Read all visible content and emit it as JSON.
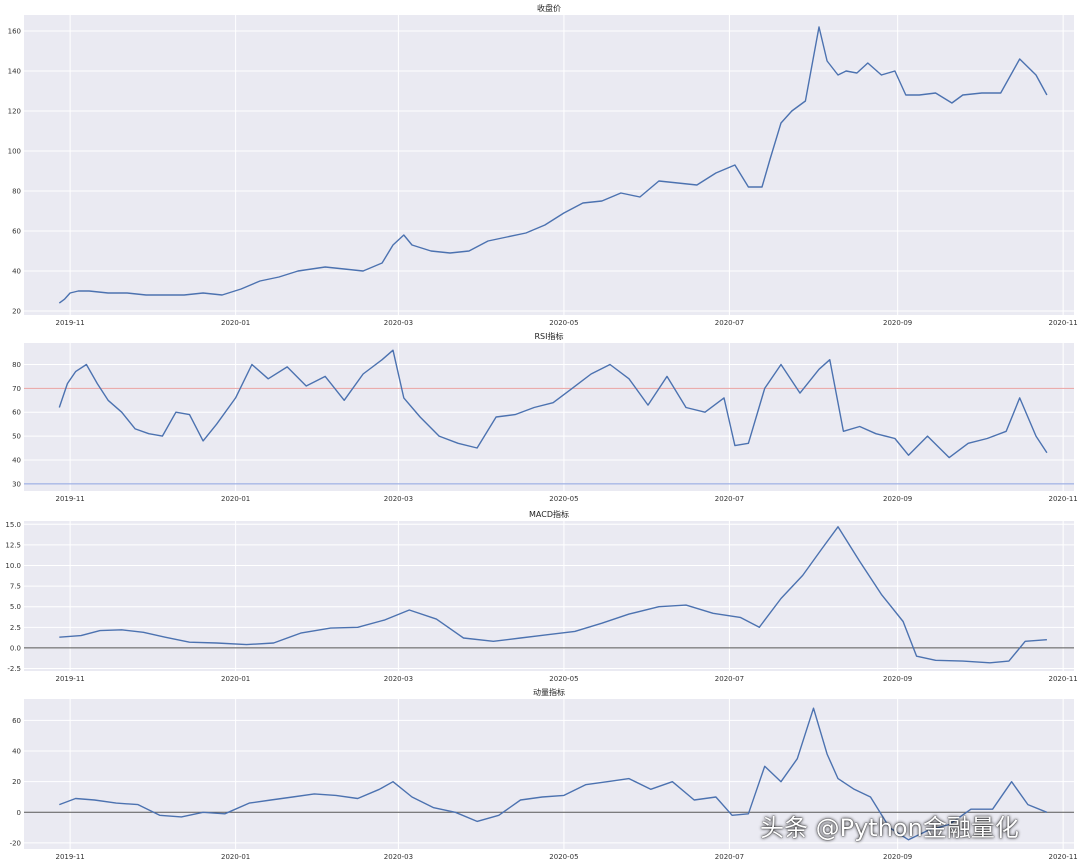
{
  "watermark": "头条 @Python金融量化",
  "colors": {
    "series": "#4c72b0",
    "panel_bg": "#eaeaf2",
    "grid": "#ffffff",
    "overbought_line": "#e8a0a0",
    "oversold_line": "#8aa0e0",
    "zero_line": "#555555"
  },
  "chart_data": [
    {
      "type": "line",
      "title": "收盘价",
      "xlabel": "",
      "ylabel": "",
      "x_range": [
        "2019-10-15",
        "2020-11-05"
      ],
      "ylim": [
        18,
        168
      ],
      "yticks": [
        20,
        40,
        60,
        80,
        100,
        120,
        140,
        160
      ],
      "ytick_labels": [
        "20",
        "40",
        "60",
        "80",
        "100",
        "120",
        "140",
        "160"
      ],
      "xticks": [
        "2019-11-01",
        "2020-01-01",
        "2020-03-01",
        "2020-05-01",
        "2020-07-01",
        "2020-09-01",
        "2020-11-01"
      ],
      "xtick_labels": [
        "2019-11",
        "2020-01",
        "2020-03",
        "2020-05",
        "2020-07",
        "2020-09",
        "2020-11"
      ],
      "ref_lines": [],
      "grid": true,
      "series": [
        {
          "x": [
            "2019-10-28",
            "2019-10-30",
            "2019-11-01",
            "2019-11-04",
            "2019-11-08",
            "2019-11-15",
            "2019-11-22",
            "2019-11-29",
            "2019-12-06",
            "2019-12-13",
            "2019-12-20",
            "2019-12-27",
            "2020-01-03",
            "2020-01-10",
            "2020-01-17",
            "2020-01-24",
            "2020-02-03",
            "2020-02-10",
            "2020-02-17",
            "2020-02-24",
            "2020-02-28",
            "2020-03-03",
            "2020-03-06",
            "2020-03-13",
            "2020-03-20",
            "2020-03-27",
            "2020-04-03",
            "2020-04-10",
            "2020-04-17",
            "2020-04-24",
            "2020-05-01",
            "2020-05-08",
            "2020-05-15",
            "2020-05-22",
            "2020-05-29",
            "2020-06-05",
            "2020-06-12",
            "2020-06-19",
            "2020-06-26",
            "2020-07-03",
            "2020-07-08",
            "2020-07-13",
            "2020-07-16",
            "2020-07-20",
            "2020-07-24",
            "2020-07-29",
            "2020-08-03",
            "2020-08-06",
            "2020-08-10",
            "2020-08-13",
            "2020-08-17",
            "2020-08-21",
            "2020-08-26",
            "2020-08-31",
            "2020-09-04",
            "2020-09-09",
            "2020-09-15",
            "2020-09-21",
            "2020-09-25",
            "2020-10-02",
            "2020-10-09",
            "2020-10-16",
            "2020-10-22",
            "2020-10-26"
          ],
          "y": [
            24,
            26,
            29,
            30,
            30,
            29,
            29,
            28,
            28,
            28,
            29,
            28,
            31,
            35,
            37,
            40,
            42,
            41,
            40,
            44,
            53,
            58,
            53,
            50,
            49,
            50,
            55,
            57,
            59,
            63,
            69,
            74,
            75,
            79,
            77,
            85,
            84,
            83,
            89,
            93,
            82,
            82,
            96,
            114,
            120,
            125,
            162,
            145,
            138,
            140,
            139,
            144,
            138,
            140,
            128,
            128,
            129,
            124,
            128,
            129,
            129,
            146,
            138,
            128
          ]
        }
      ]
    },
    {
      "type": "line",
      "title": "RSI指标",
      "xlabel": "",
      "ylabel": "",
      "x_range": [
        "2019-10-15",
        "2020-11-05"
      ],
      "ylim": [
        27,
        89
      ],
      "yticks": [
        30,
        40,
        50,
        60,
        70,
        80
      ],
      "ytick_labels": [
        "30",
        "40",
        "50",
        "60",
        "70",
        "80"
      ],
      "xticks": [
        "2019-11-01",
        "2020-01-01",
        "2020-03-01",
        "2020-05-01",
        "2020-07-01",
        "2020-09-01",
        "2020-11-01"
      ],
      "xtick_labels": [
        "2019-11",
        "2020-01",
        "2020-03",
        "2020-05",
        "2020-07",
        "2020-09",
        "2020-11"
      ],
      "ref_lines": [
        {
          "y": 70,
          "color": "#e8a0a0"
        },
        {
          "y": 30,
          "color": "#8aa0e0"
        }
      ],
      "grid": true,
      "series": [
        {
          "x": [
            "2019-10-28",
            "2019-10-31",
            "2019-11-03",
            "2019-11-07",
            "2019-11-11",
            "2019-11-15",
            "2019-11-20",
            "2019-11-25",
            "2019-11-30",
            "2019-12-05",
            "2019-12-10",
            "2019-12-15",
            "2019-12-20",
            "2019-12-25",
            "2020-01-01",
            "2020-01-07",
            "2020-01-13",
            "2020-01-20",
            "2020-01-27",
            "2020-02-03",
            "2020-02-10",
            "2020-02-17",
            "2020-02-24",
            "2020-02-28",
            "2020-03-03",
            "2020-03-09",
            "2020-03-16",
            "2020-03-23",
            "2020-03-30",
            "2020-04-06",
            "2020-04-13",
            "2020-04-20",
            "2020-04-27",
            "2020-05-04",
            "2020-05-11",
            "2020-05-18",
            "2020-05-25",
            "2020-06-01",
            "2020-06-08",
            "2020-06-15",
            "2020-06-22",
            "2020-06-29",
            "2020-07-03",
            "2020-07-08",
            "2020-07-14",
            "2020-07-20",
            "2020-07-27",
            "2020-08-03",
            "2020-08-07",
            "2020-08-12",
            "2020-08-18",
            "2020-08-24",
            "2020-08-31",
            "2020-09-05",
            "2020-09-12",
            "2020-09-20",
            "2020-09-27",
            "2020-10-04",
            "2020-10-11",
            "2020-10-16",
            "2020-10-22",
            "2020-10-26"
          ],
          "y": [
            62,
            72,
            77,
            80,
            72,
            65,
            60,
            53,
            51,
            50,
            60,
            59,
            48,
            55,
            66,
            80,
            74,
            79,
            71,
            75,
            65,
            76,
            82,
            86,
            66,
            58,
            50,
            47,
            45,
            58,
            59,
            62,
            64,
            70,
            76,
            80,
            74,
            63,
            75,
            62,
            60,
            66,
            46,
            47,
            70,
            80,
            68,
            78,
            82,
            52,
            54,
            51,
            49,
            42,
            50,
            41,
            47,
            49,
            52,
            66,
            50,
            43
          ]
        }
      ]
    },
    {
      "type": "line",
      "title": "MACD指标",
      "xlabel": "",
      "ylabel": "",
      "x_range": [
        "2019-10-15",
        "2020-11-05"
      ],
      "ylim": [
        -2.8,
        15.4
      ],
      "yticks": [
        -2.5,
        0.0,
        2.5,
        5.0,
        7.5,
        10.0,
        12.5,
        15.0
      ],
      "ytick_labels": [
        "-2.5",
        "0.0",
        "2.5",
        "5.0",
        "7.5",
        "10.0",
        "12.5",
        "15.0"
      ],
      "xticks": [
        "2019-11-01",
        "2020-01-01",
        "2020-03-01",
        "2020-05-01",
        "2020-07-01",
        "2020-09-01",
        "2020-11-01"
      ],
      "xtick_labels": [
        "2019-11",
        "2020-01",
        "2020-03",
        "2020-05",
        "2020-07",
        "2020-09",
        "2020-11"
      ],
      "ref_lines": [
        {
          "y": 0,
          "color": "#555555"
        }
      ],
      "grid": true,
      "series": [
        {
          "x": [
            "2019-10-28",
            "2019-11-05",
            "2019-11-12",
            "2019-11-20",
            "2019-11-28",
            "2019-12-06",
            "2019-12-15",
            "2019-12-25",
            "2020-01-05",
            "2020-01-15",
            "2020-01-25",
            "2020-02-05",
            "2020-02-15",
            "2020-02-25",
            "2020-03-05",
            "2020-03-15",
            "2020-03-25",
            "2020-04-05",
            "2020-04-15",
            "2020-04-25",
            "2020-05-05",
            "2020-05-15",
            "2020-05-25",
            "2020-06-05",
            "2020-06-15",
            "2020-06-25",
            "2020-07-05",
            "2020-07-12",
            "2020-07-20",
            "2020-07-28",
            "2020-08-04",
            "2020-08-10",
            "2020-08-18",
            "2020-08-26",
            "2020-09-03",
            "2020-09-08",
            "2020-09-15",
            "2020-09-25",
            "2020-10-05",
            "2020-10-12",
            "2020-10-18",
            "2020-10-26"
          ],
          "y": [
            1.3,
            1.5,
            2.1,
            2.2,
            1.9,
            1.3,
            0.7,
            0.6,
            0.4,
            0.6,
            1.8,
            2.4,
            2.5,
            3.4,
            4.6,
            3.5,
            1.2,
            0.8,
            1.2,
            1.6,
            2.0,
            3.0,
            4.1,
            5.0,
            5.2,
            4.2,
            3.7,
            2.5,
            6.0,
            8.8,
            12.0,
            14.7,
            10.5,
            6.5,
            3.2,
            -1.0,
            -1.5,
            -1.6,
            -1.8,
            -1.6,
            0.8,
            1.0
          ]
        }
      ]
    },
    {
      "type": "line",
      "title": "动量指标",
      "xlabel": "",
      "ylabel": "",
      "x_range": [
        "2019-10-15",
        "2020-11-05"
      ],
      "ylim": [
        -24,
        74
      ],
      "yticks": [
        -20,
        0,
        20,
        40,
        60
      ],
      "ytick_labels": [
        "-20",
        "0",
        "20",
        "40",
        "60"
      ],
      "xticks": [
        "2019-11-01",
        "2020-01-01",
        "2020-03-01",
        "2020-05-01",
        "2020-07-01",
        "2020-09-01",
        "2020-11-01"
      ],
      "xtick_labels": [
        "2019-11",
        "2020-01",
        "2020-03",
        "2020-05",
        "2020-07",
        "2020-09",
        "2020-11"
      ],
      "ref_lines": [
        {
          "y": 0,
          "color": "#555555"
        }
      ],
      "grid": true,
      "series": [
        {
          "x": [
            "2019-10-28",
            "2019-11-03",
            "2019-11-10",
            "2019-11-18",
            "2019-11-26",
            "2019-12-04",
            "2019-12-12",
            "2019-12-20",
            "2019-12-28",
            "2020-01-06",
            "2020-01-14",
            "2020-01-22",
            "2020-01-30",
            "2020-02-07",
            "2020-02-15",
            "2020-02-23",
            "2020-02-28",
            "2020-03-06",
            "2020-03-14",
            "2020-03-22",
            "2020-03-30",
            "2020-04-07",
            "2020-04-15",
            "2020-04-23",
            "2020-05-01",
            "2020-05-09",
            "2020-05-17",
            "2020-05-25",
            "2020-06-02",
            "2020-06-10",
            "2020-06-18",
            "2020-06-26",
            "2020-07-02",
            "2020-07-08",
            "2020-07-14",
            "2020-07-20",
            "2020-07-26",
            "2020-08-01",
            "2020-08-06",
            "2020-08-10",
            "2020-08-16",
            "2020-08-22",
            "2020-08-29",
            "2020-09-05",
            "2020-09-12",
            "2020-09-20",
            "2020-09-28",
            "2020-10-06",
            "2020-10-13",
            "2020-10-19",
            "2020-10-26"
          ],
          "y": [
            5,
            9,
            8,
            6,
            5,
            -2,
            -3,
            0,
            -1,
            6,
            8,
            10,
            12,
            11,
            9,
            15,
            20,
            10,
            3,
            0,
            -6,
            -2,
            8,
            10,
            11,
            18,
            20,
            22,
            15,
            20,
            8,
            10,
            -2,
            -1,
            30,
            20,
            35,
            68,
            38,
            22,
            15,
            10,
            -10,
            -18,
            -12,
            -8,
            2,
            2,
            20,
            5,
            0
          ]
        }
      ]
    }
  ]
}
